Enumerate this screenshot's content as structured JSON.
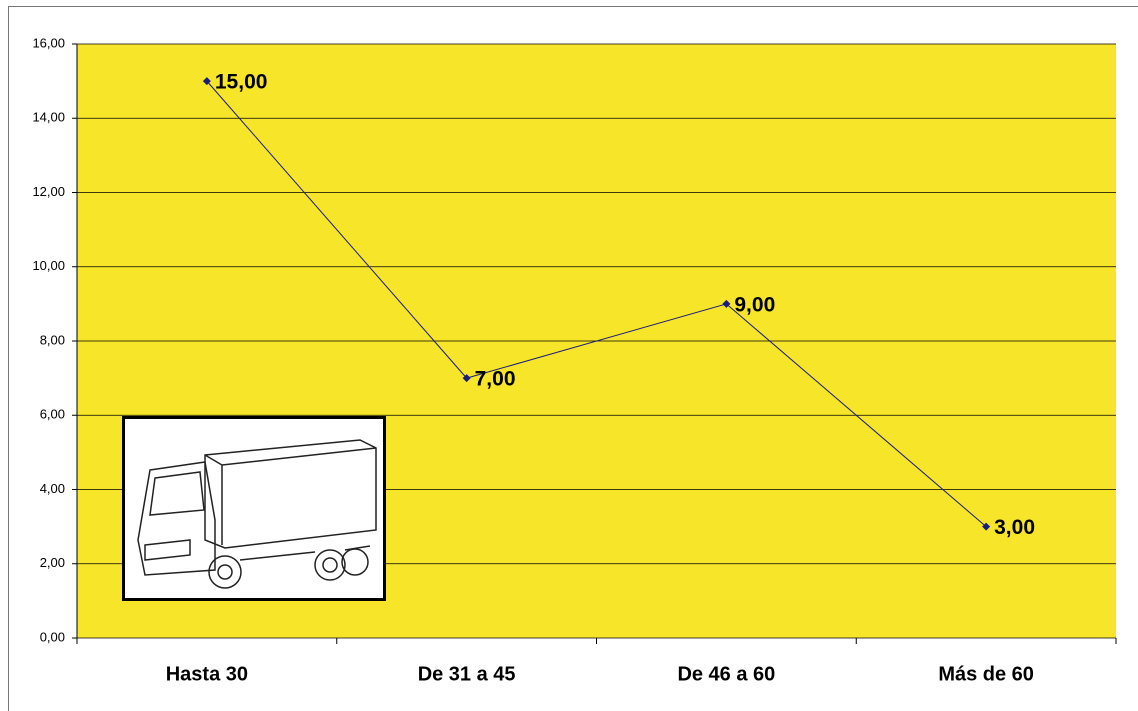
{
  "chart_data": {
    "type": "line",
    "categories": [
      "Hasta 30",
      "De 31 a 45",
      "De 46 a 60",
      "Más de 60"
    ],
    "values": [
      15,
      7,
      9,
      3
    ],
    "value_labels": [
      "15,00",
      "7,00",
      "9,00",
      "3,00"
    ],
    "color": "#1c1c7c",
    "ylim": [
      0,
      16
    ],
    "yticks": [
      {
        "value": 0,
        "label": "0,00"
      },
      {
        "value": 2,
        "label": "2,00"
      },
      {
        "value": 4,
        "label": "4,00"
      },
      {
        "value": 6,
        "label": "6,00"
      },
      {
        "value": 8,
        "label": "8,00"
      },
      {
        "value": 10,
        "label": "10,00"
      },
      {
        "value": 12,
        "label": "12,00"
      },
      {
        "value": 14,
        "label": "14,00"
      },
      {
        "value": 16,
        "label": "16,00"
      }
    ],
    "grid": true
  }
}
